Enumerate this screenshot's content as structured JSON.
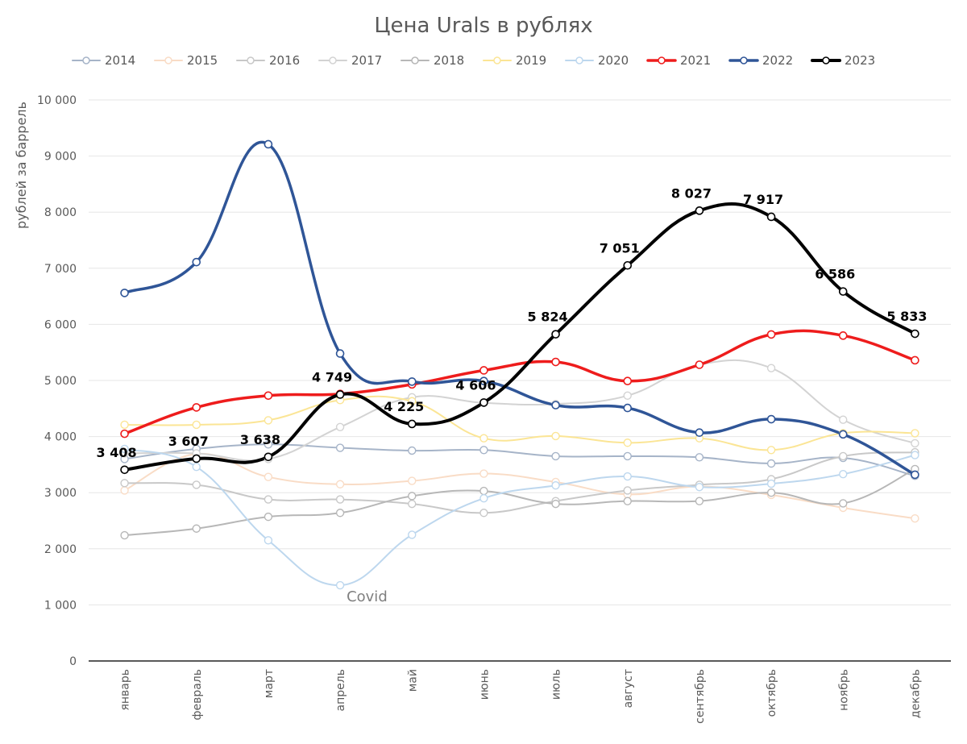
{
  "chart_data": {
    "type": "line",
    "title": "Цена Urals в рублях",
    "ylabel": "рублей за баррель",
    "xlabel": "",
    "ylim": [
      0,
      10000
    ],
    "yticks": [
      0,
      1000,
      2000,
      3000,
      4000,
      5000,
      6000,
      7000,
      8000,
      9000,
      10000
    ],
    "ytick_labels": [
      "0",
      "1 000",
      "2 000",
      "3 000",
      "4 000",
      "5 000",
      "6 000",
      "7 000",
      "8 000",
      "9 000",
      "10 000"
    ],
    "categories": [
      "январь",
      "февраль",
      "март",
      "апрель",
      "май",
      "июнь",
      "июль",
      "август",
      "сентябрь",
      "октябрь",
      "ноябрь",
      "декабрь"
    ],
    "grid": true,
    "legend_position": "top",
    "series": [
      {
        "name": "2014",
        "color": "#a6b4c8",
        "width": 2,
        "values": [
          3600,
          3780,
          3860,
          3800,
          3750,
          3760,
          3650,
          3650,
          3630,
          3520,
          3620,
          3300
        ]
      },
      {
        "name": "2015",
        "color": "#f9dcc6",
        "width": 2,
        "values": [
          3040,
          3690,
          3280,
          3150,
          3210,
          3340,
          3190,
          2970,
          3110,
          2960,
          2730,
          2540
        ]
      },
      {
        "name": "2016",
        "color": "#c8c8c8",
        "width": 2,
        "values": [
          3170,
          3140,
          2880,
          2880,
          2800,
          2640,
          2850,
          3040,
          3140,
          3240,
          3650,
          3720
        ]
      },
      {
        "name": "2017",
        "color": "#d3d3d3",
        "width": 2,
        "values": [
          3700,
          3700,
          3600,
          4170,
          4700,
          4600,
          4580,
          4730,
          5280,
          5220,
          4300,
          3880
        ]
      },
      {
        "name": "2018",
        "color": "#b7b7b7",
        "width": 2,
        "values": [
          2240,
          2360,
          2570,
          2640,
          2940,
          3030,
          2800,
          2850,
          2850,
          3000,
          2810,
          3420
        ]
      },
      {
        "name": "2019",
        "color": "#fbe595",
        "width": 2,
        "values": [
          4210,
          4210,
          4290,
          4650,
          4630,
          3970,
          4010,
          3890,
          3970,
          3760,
          4060,
          4060
        ]
      },
      {
        "name": "2020",
        "color": "#bdd7ee",
        "width": 2,
        "values": [
          3780,
          3460,
          2150,
          1350,
          2250,
          2900,
          3130,
          3290,
          3100,
          3160,
          3330,
          3670
        ]
      },
      {
        "name": "2021",
        "color": "#ee1c1c",
        "width": 3.5,
        "values": [
          4050,
          4520,
          4730,
          4760,
          4930,
          5180,
          5330,
          4990,
          5280,
          5820,
          5800,
          5360
        ]
      },
      {
        "name": "2022",
        "color": "#2f5597",
        "width": 3.5,
        "values": [
          6560,
          7110,
          9210,
          5480,
          4980,
          4990,
          4560,
          4510,
          4070,
          4310,
          4040,
          3320
        ]
      },
      {
        "name": "2023",
        "color": "#000000",
        "width": 4,
        "values": [
          3408,
          3607,
          3638,
          4749,
          4225,
          4606,
          5824,
          7051,
          8027,
          7917,
          6586,
          5833
        ]
      }
    ],
    "data_labels": {
      "series": "2023",
      "labels": [
        "3 408",
        "3 607",
        "3 638",
        "4 749",
        "4 225",
        "4 606",
        "5 824",
        "7 051",
        "8 027",
        "7 917",
        "6 586",
        "5 833"
      ]
    },
    "annotations": [
      {
        "text": "Covid",
        "series": "2020",
        "category": "апрель"
      }
    ]
  }
}
